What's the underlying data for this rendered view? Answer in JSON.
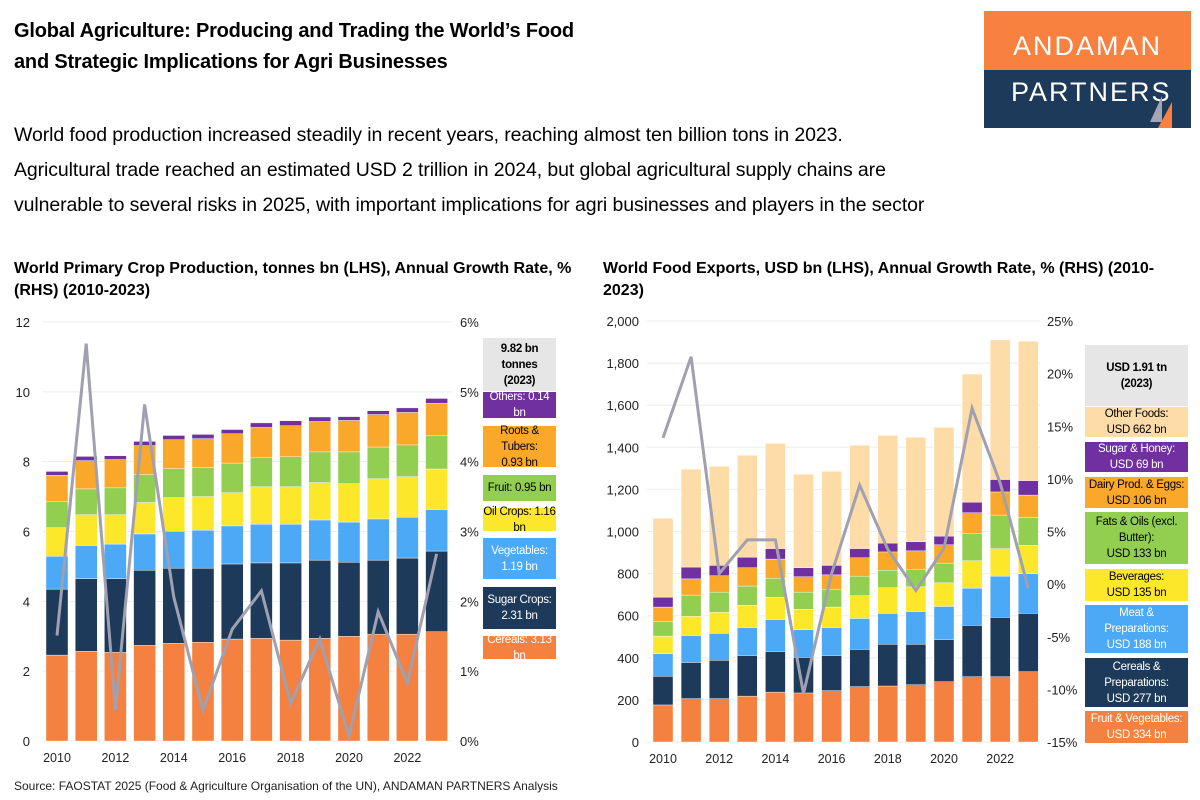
{
  "header": {
    "title_lines": [
      "Global Agriculture: Producing and Trading the World’s Food",
      "and Strategic Implications for Agri Businesses"
    ],
    "subtitle_lines": [
      "World food production increased steadily in recent years, reaching almost ten billion tons in 2023.",
      "Agricultural trade reached an estimated USD 2 trillion in 2024, but global agricultural supply chains are",
      "vulnerable to several risks in 2025, with important implications for agri businesses and players in the sector"
    ],
    "logo": {
      "line1": "ANDAMAN",
      "line2": "PARTNERS",
      "colors": {
        "top": "#F8813F",
        "bottom": "#1E3A5A"
      }
    }
  },
  "source": "Source: FAOSTAT 2025 (Food & Agriculture Organisation of the UN), ANDAMAN PARTNERS Analysis",
  "chart_data": [
    {
      "type": "bar",
      "stacked": true,
      "title": "World Primary Crop Production, tonnes bn (LHS), Annual Growth Rate, % (RHS) (2010-2023)",
      "categories": [
        2010,
        2011,
        2012,
        2013,
        2014,
        2015,
        2016,
        2017,
        2018,
        2019,
        2020,
        2021,
        2022,
        2023
      ],
      "x_tick_labels": [
        "2010",
        "2012",
        "2014",
        "2016",
        "2018",
        "2020",
        "2022"
      ],
      "ylim": [
        0,
        12
      ],
      "y_tick_labels": [
        "0",
        "2",
        "4",
        "6",
        "8",
        "10",
        "12"
      ],
      "y2lim": [
        0,
        6
      ],
      "y2_tick_labels": [
        "0%",
        "1%",
        "2%",
        "3%",
        "4%",
        "5%",
        "6%"
      ],
      "grid": true,
      "legend_placement": "right",
      "legend_header": "9.82 bn tonnes\n(2023)",
      "series": [
        {
          "name": "Cereals",
          "legend": "Cereals: 3.13 bn",
          "color": "#F4813F",
          "text_color": "#fff",
          "values": [
            2.46,
            2.57,
            2.54,
            2.74,
            2.8,
            2.83,
            2.92,
            2.94,
            2.89,
            2.94,
            3.0,
            3.06,
            3.06,
            3.13
          ]
        },
        {
          "name": "Sugar Crops",
          "legend": "Sugar Crops:\n2.31 bn",
          "color": "#1E3A5A",
          "text_color": "#fff",
          "values": [
            1.89,
            2.08,
            2.11,
            2.15,
            2.15,
            2.12,
            2.15,
            2.16,
            2.21,
            2.24,
            2.12,
            2.12,
            2.18,
            2.31
          ]
        },
        {
          "name": "Vegetables",
          "legend": "Vegetables:\n1.19 bn",
          "color": "#4BA9F5",
          "text_color": "#fff",
          "values": [
            0.94,
            0.95,
            0.99,
            1.04,
            1.06,
            1.09,
            1.09,
            1.11,
            1.11,
            1.15,
            1.15,
            1.18,
            1.17,
            1.19
          ]
        },
        {
          "name": "Oil Crops",
          "legend": "Oil Crops: 1.16 bn",
          "color": "#FDE72B",
          "text_color": "#000",
          "values": [
            0.82,
            0.88,
            0.84,
            0.9,
            0.96,
            0.96,
            0.95,
            1.07,
            1.07,
            1.07,
            1.1,
            1.15,
            1.16,
            1.16
          ]
        },
        {
          "name": "Fruit",
          "legend": "Fruit: 0.95 bn",
          "color": "#92CE50",
          "text_color": "#000",
          "values": [
            0.74,
            0.74,
            0.77,
            0.8,
            0.83,
            0.83,
            0.85,
            0.83,
            0.86,
            0.88,
            0.91,
            0.91,
            0.91,
            0.95
          ]
        },
        {
          "name": "Roots & Tubers",
          "legend": "Roots & Tubers:\n0.93 bn",
          "color": "#F9A82A",
          "text_color": "#000",
          "values": [
            0.76,
            0.81,
            0.81,
            0.83,
            0.83,
            0.83,
            0.84,
            0.87,
            0.89,
            0.87,
            0.9,
            0.93,
            0.93,
            0.93
          ]
        },
        {
          "name": "Others",
          "legend": "Others: 0.14 bn",
          "color": "#7030A0",
          "text_color": "#fff",
          "values": [
            0.11,
            0.12,
            0.11,
            0.12,
            0.12,
            0.12,
            0.12,
            0.13,
            0.14,
            0.13,
            0.11,
            0.11,
            0.13,
            0.14
          ]
        }
      ],
      "line_series": {
        "axis": "right",
        "color": "#A0A0B0",
        "values": [
          1.51,
          5.69,
          0.44,
          4.82,
          2.06,
          0.44,
          1.6,
          2.15,
          0.54,
          1.46,
          0.07,
          1.85,
          0.83,
          2.68
        ]
      }
    },
    {
      "type": "bar",
      "stacked": true,
      "title": "World Food Exports, USD bn (LHS), Annual Growth Rate, % (RHS) (2010-2023)",
      "categories": [
        2010,
        2011,
        2012,
        2013,
        2014,
        2015,
        2016,
        2017,
        2018,
        2019,
        2020,
        2021,
        2022,
        2023
      ],
      "x_tick_labels": [
        "2010",
        "2012",
        "2014",
        "2016",
        "2018",
        "2020",
        "2022"
      ],
      "ylim": [
        0,
        2000
      ],
      "y_tick_labels": [
        "0",
        "200",
        "400",
        "600",
        "800",
        "1,000",
        "1,200",
        "1,400",
        "1,600",
        "1,800",
        "2,000"
      ],
      "y2lim": [
        -15,
        25
      ],
      "y2_tick_labels": [
        "-15%",
        "-10%",
        "-5%",
        "0%",
        "5%",
        "10%",
        "15%",
        "20%",
        "25%"
      ],
      "grid": true,
      "legend_placement": "right",
      "legend_header": "USD 1.91 tn\n(2023)",
      "series": [
        {
          "name": "Fruit & Vegetables",
          "legend": "Fruit & Vegetables:\nUSD 334 bn",
          "color": "#F4813F",
          "text_color": "#fff",
          "values": [
            176,
            206,
            206,
            218,
            237,
            233,
            244,
            263,
            266,
            272,
            286,
            310,
            310,
            334
          ]
        },
        {
          "name": "Cereals & Preparations",
          "legend": "Cereals &\nPreparations:\nUSD 277 bn",
          "color": "#1E3A5A",
          "text_color": "#fff",
          "values": [
            136,
            172,
            182,
            193,
            193,
            169,
            167,
            177,
            198,
            192,
            201,
            244,
            282,
            277
          ]
        },
        {
          "name": "Meat & Preparations",
          "legend": "Meat &\nPreparations:\nUSD 188 bn",
          "color": "#4BA9F5",
          "text_color": "#fff",
          "values": [
            107,
            128,
            128,
            133,
            152,
            131,
            133,
            147,
            147,
            156,
            157,
            177,
            196,
            188
          ]
        },
        {
          "name": "Beverages",
          "legend": "Beverages:\nUSD 135 bn",
          "color": "#FDE72B",
          "text_color": "#000",
          "values": [
            84,
            91,
            100,
            106,
            106,
            98,
            97,
            108,
            122,
            117,
            112,
            130,
            130,
            135
          ]
        },
        {
          "name": "Fats & Oils (excl. Butter)",
          "legend": "Fats & Oils (excl.\nButter):\nUSD 133 bn",
          "color": "#92CE50",
          "text_color": "#000",
          "values": [
            70,
            101,
            96,
            91,
            90,
            81,
            85,
            93,
            83,
            84,
            94,
            131,
            160,
            133
          ]
        },
        {
          "name": "Dairy Prod. & Eggs",
          "legend": "Dairy Prod. & Eggs:\nUSD 106 bn",
          "color": "#F9A82A",
          "text_color": "#000",
          "values": [
            68,
            77,
            78,
            87,
            91,
            73,
            68,
            87,
            87,
            87,
            87,
            97,
            110,
            106
          ]
        },
        {
          "name": "Sugar & Honey",
          "legend": "Sugar & Honey:\nUSD 69 bn",
          "color": "#7030A0",
          "text_color": "#fff",
          "values": [
            47,
            56,
            49,
            50,
            50,
            43,
            45,
            44,
            42,
            43,
            41,
            50,
            59,
            69
          ]
        },
        {
          "name": "Other Foods",
          "legend": "Other Foods:\nUSD 662 bn",
          "color": "#FDDCA8",
          "text_color": "#000",
          "values": [
            375,
            465,
            471,
            484,
            500,
            444,
            447,
            491,
            512,
            497,
            517,
            609,
            663,
            662
          ]
        }
      ],
      "line_series": {
        "axis": "right",
        "color": "#A0A0B0",
        "values": [
          13.9,
          21.6,
          1.0,
          4.2,
          4.2,
          -10.4,
          1.0,
          9.4,
          3.3,
          -0.6,
          3.4,
          16.7,
          9.6,
          -0.4
        ]
      }
    }
  ]
}
